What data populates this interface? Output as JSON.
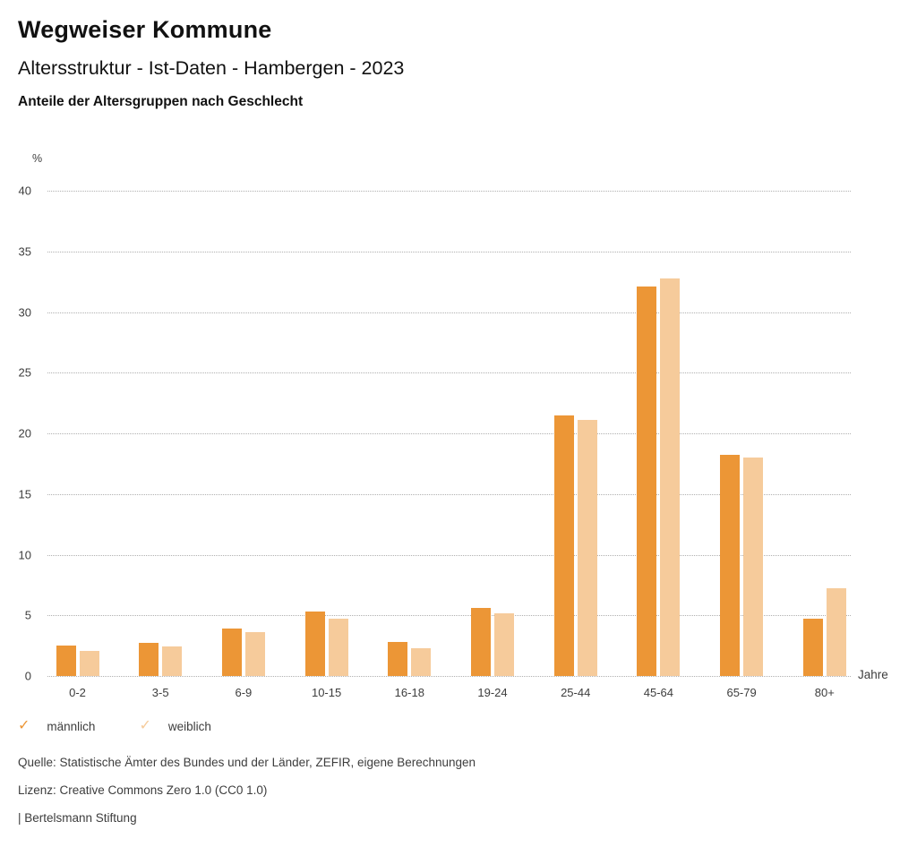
{
  "header": {
    "title": "Wegweiser Kommune",
    "subtitle": "Altersstruktur - Ist-Daten - Hambergen - 2023",
    "heading": "Anteile der Altersgruppen nach Geschlecht"
  },
  "chart_data": {
    "type": "bar",
    "title": "Anteile der Altersgruppen nach Geschlecht",
    "categories": [
      "0-2",
      "3-5",
      "6-9",
      "10-15",
      "16-18",
      "19-24",
      "25-44",
      "45-64",
      "65-79",
      "80+"
    ],
    "series": [
      {
        "name": "männlich",
        "color": "#EC9636",
        "values": [
          2.5,
          2.7,
          3.9,
          5.3,
          2.8,
          5.6,
          21.5,
          32.1,
          18.2,
          4.7
        ]
      },
      {
        "name": "weiblich",
        "color": "#F6CB9B",
        "values": [
          2.1,
          2.4,
          3.6,
          4.7,
          2.3,
          5.2,
          21.1,
          32.8,
          18.0,
          7.2
        ]
      }
    ],
    "ylabel": "%",
    "xlabel": "Jahre",
    "ylim": [
      0,
      40
    ],
    "ytick_step": 5,
    "grid": "horizontal-dotted",
    "gridline_color": "#b0b0b0",
    "legend_position": "bottom-left"
  },
  "legend": {
    "items": [
      {
        "label": "männlich",
        "icon": "check",
        "color": "#EC9636"
      },
      {
        "label": "weiblich",
        "icon": "check",
        "color": "#F6CB9B"
      }
    ]
  },
  "footer": {
    "source": "Quelle: Statistische Ämter des Bundes und der Länder, ZEFIR, eigene Berechnungen",
    "license": "Lizenz: Creative Commons Zero 1.0 (CC0 1.0)",
    "attribution": "| Bertelsmann Stiftung"
  }
}
